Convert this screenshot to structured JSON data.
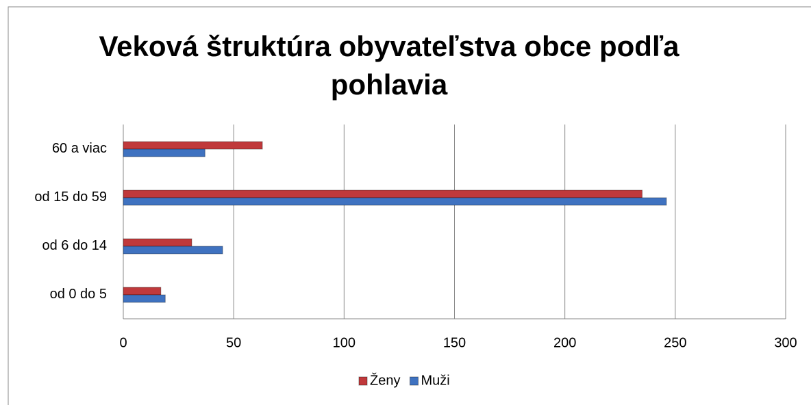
{
  "chart_data": {
    "type": "hbar",
    "title": "Veková štruktúra obyvateľstva obce podľa pohlavia",
    "categories": [
      "od 0 do 5",
      "od 6 do 14",
      "od 15 do 59",
      "60 a viac"
    ],
    "series": [
      {
        "name": "Ženy",
        "color": "#c0393b",
        "values": [
          17,
          31,
          235,
          63
        ]
      },
      {
        "name": "Muži",
        "color": "#3f72c0",
        "values": [
          19,
          45,
          246,
          37
        ]
      }
    ],
    "xlim": [
      0,
      300
    ],
    "xticks": [
      0,
      50,
      100,
      150,
      200,
      250,
      300
    ],
    "grid": true,
    "legend": "bottom"
  }
}
